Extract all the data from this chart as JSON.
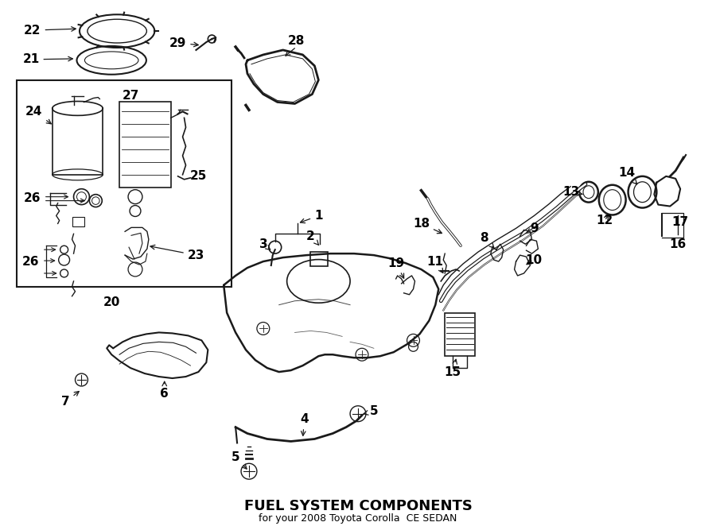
{
  "title": "FUEL SYSTEM COMPONENTS",
  "subtitle": "for your 2008 Toyota Corolla  CE SEDAN",
  "bg_color": "#ffffff",
  "line_color": "#1a1a1a",
  "text_color": "#000000",
  "fig_width": 9.0,
  "fig_height": 6.62,
  "dpi": 100
}
